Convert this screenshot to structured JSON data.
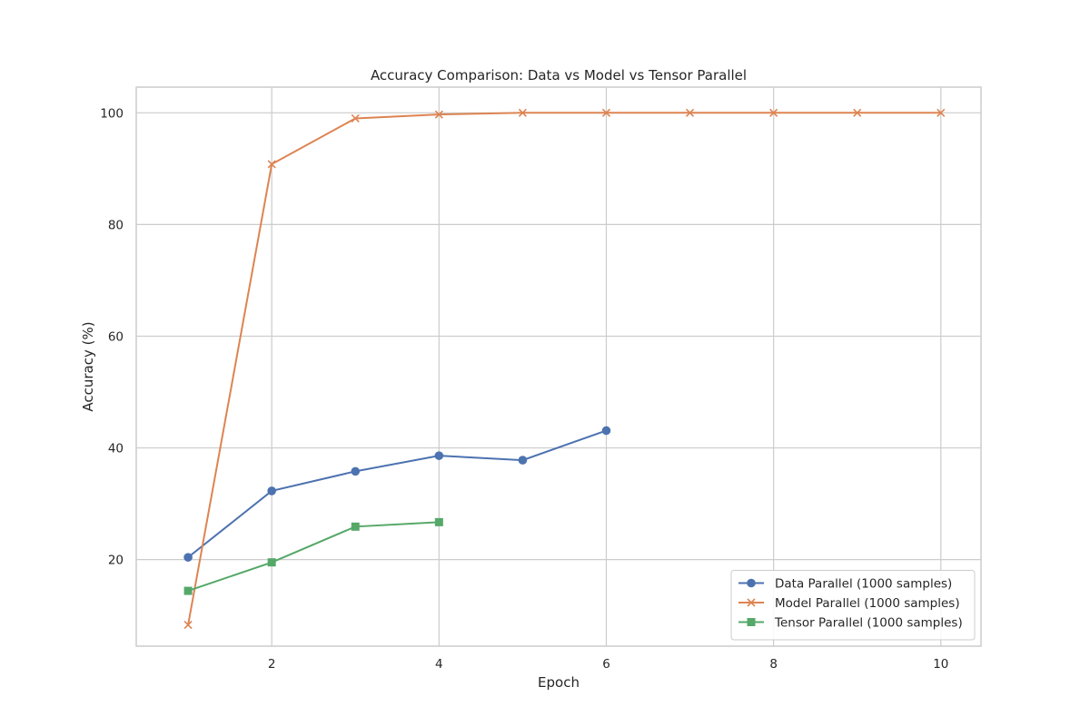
{
  "chart_data": {
    "type": "line",
    "title": "Accuracy Comparison: Data vs Model vs Tensor Parallel",
    "xlabel": "Epoch",
    "ylabel": "Accuracy (%)",
    "xlim": [
      0.38,
      10.48
    ],
    "ylim": [
      4.5,
      104.6
    ],
    "xticks": [
      2,
      4,
      6,
      8,
      10
    ],
    "yticks": [
      20,
      40,
      60,
      80,
      100
    ],
    "grid": true,
    "legend_position": "lower-right",
    "series": [
      {
        "name": "Data Parallel (1000 samples)",
        "color": "#4c72b0",
        "marker": "circle",
        "x": [
          1,
          2,
          3,
          4,
          5,
          6
        ],
        "y": [
          20.4,
          32.3,
          35.8,
          38.6,
          37.8,
          43.1
        ]
      },
      {
        "name": "Model Parallel (1000 samples)",
        "color": "#dd8452",
        "marker": "x",
        "x": [
          1,
          2,
          3,
          4,
          5,
          6,
          7,
          8,
          9,
          10
        ],
        "y": [
          8.3,
          90.8,
          99.0,
          99.7,
          100.0,
          100.0,
          100.0,
          100.0,
          100.0,
          100.0
        ]
      },
      {
        "name": "Tensor Parallel (1000 samples)",
        "color": "#55a868",
        "marker": "square",
        "x": [
          1,
          2,
          3,
          4
        ],
        "y": [
          14.4,
          19.5,
          25.9,
          26.7
        ]
      }
    ]
  }
}
